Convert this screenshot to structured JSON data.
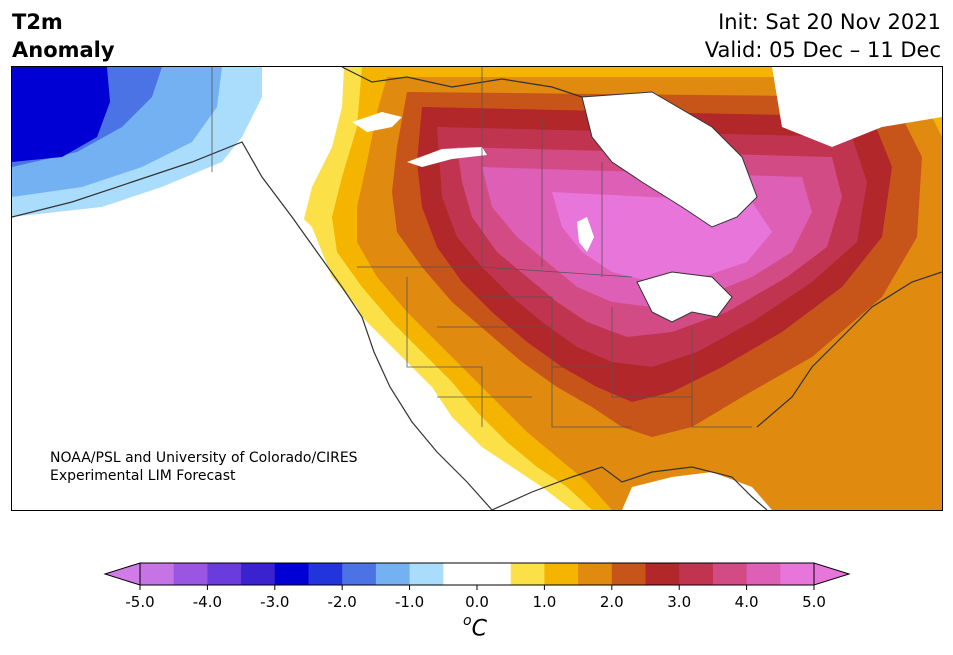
{
  "title": {
    "line1": "T2m",
    "line2": "Anomaly"
  },
  "dates": {
    "init": "Init: Sat 20 Nov 2021",
    "valid": "Valid: 05 Dec – 11 Dec"
  },
  "credit": {
    "line1": "NOAA/PSL and University of Colorado/CIRES",
    "line2": "Experimental LIM Forecast"
  },
  "colorbar": {
    "unit_prefix": "o",
    "unit_symbol": "C",
    "tick_labels": [
      "-5.0",
      "-4.0",
      "-3.0",
      "-2.0",
      "-1.0",
      "0.0",
      "1.0",
      "2.0",
      "3.0",
      "4.0",
      "5.0"
    ],
    "colors": [
      "#c673e6",
      "#9b55e3",
      "#6a3bdd",
      "#3a22cf",
      "#0000d4",
      "#2235dc",
      "#4b73e6",
      "#74b1f2",
      "#aadcfb",
      "#ffffff",
      "#ffffff",
      "#fce047",
      "#f4b400",
      "#e08a10",
      "#c75418",
      "#b1272a",
      "#c1344f",
      "#d24b84",
      "#de5fb6",
      "#e876da"
    ],
    "min_color": "#d17be9",
    "max_color": "#e876da"
  },
  "legend_colors": {
    "pink": "#e876da",
    "magenta": "#d24b84",
    "crimson": "#b1272a",
    "rust": "#c75418",
    "orange": "#e08a10",
    "amber": "#f4b400",
    "yellow": "#fce047",
    "blue_dark": "#0000d4",
    "blue_mid": "#4b73e6",
    "blue_light": "#74b1f2",
    "blue_pale": "#aadcfb"
  }
}
